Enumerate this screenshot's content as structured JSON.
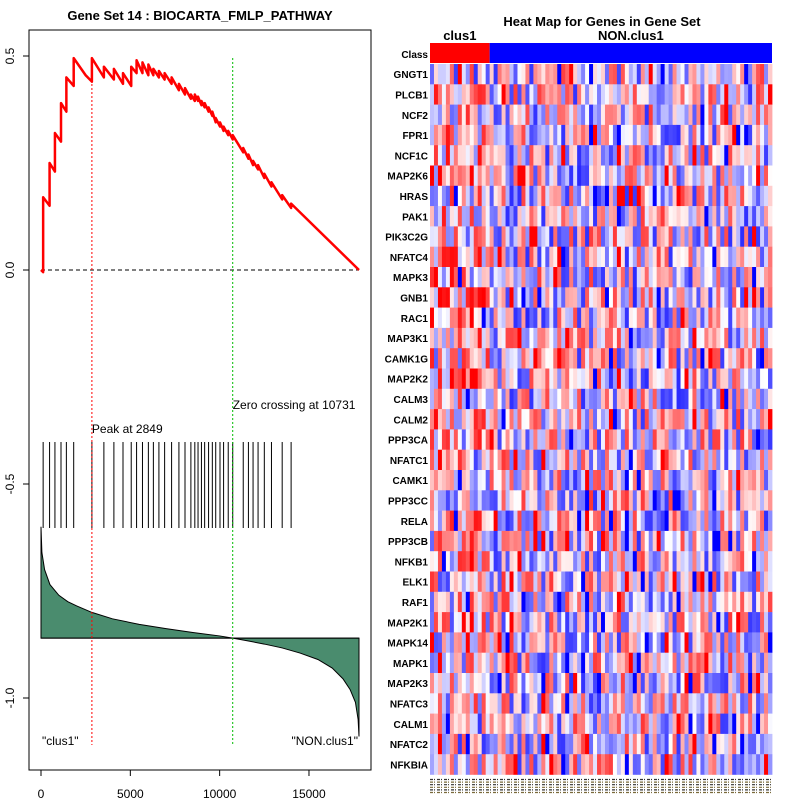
{
  "chart_data": [
    {
      "type": "line",
      "panel": "enrichment-plot",
      "title": "Gene Set  14 : BIOCARTA_FMLP_PATHWAY",
      "xlabel": "",
      "ylabel": "",
      "xlim": [
        0,
        17800
      ],
      "ylim": [
        -1.1,
        0.55
      ],
      "x_ticks": [
        0,
        5000,
        10000,
        15000
      ],
      "x_tick_labels": [
        "0",
        "5000",
        "10000",
        "15000"
      ],
      "y_ticks": [
        0.5,
        0.0,
        -0.5,
        -1.0
      ],
      "y_tick_labels": [
        "0.5",
        "0.0",
        "-0.5",
        "-1.0"
      ],
      "n_genes": 17800,
      "hit_positions": [
        120,
        480,
        780,
        1120,
        1420,
        1830,
        2849,
        3520,
        4080,
        4590,
        5050,
        5350,
        5680,
        6010,
        6290,
        6600,
        6920,
        7310,
        7720,
        8060,
        8390,
        8610,
        8790,
        8980,
        9160,
        9380,
        9590,
        9780,
        10020,
        10220,
        10480,
        10731,
        11320,
        11610,
        11870,
        12150,
        12500,
        12900,
        13500,
        14000
      ],
      "es_curve": {
        "name": "Running enrichment score",
        "x": [
          0,
          120,
          120,
          480,
          480,
          780,
          780,
          1120,
          1120,
          1420,
          1420,
          1830,
          1830,
          2500,
          2849,
          2849,
          3520,
          3520,
          4080,
          4080,
          4590,
          4590,
          5050,
          5050,
          5350,
          5350,
          5680,
          5680,
          6010,
          6010,
          6290,
          6290,
          6600,
          6600,
          6920,
          6920,
          7310,
          7310,
          7720,
          7720,
          8060,
          8060,
          8390,
          8390,
          8610,
          8610,
          8790,
          8790,
          8980,
          8980,
          9160,
          9160,
          9380,
          9380,
          9590,
          9590,
          9780,
          9780,
          10020,
          10020,
          10220,
          10220,
          10480,
          10480,
          10731,
          10731,
          11320,
          11320,
          11610,
          11610,
          11870,
          11870,
          12150,
          12150,
          12500,
          12500,
          12900,
          12900,
          13500,
          13500,
          14000,
          14000,
          17800
        ],
        "values": [
          0.0,
          -0.005,
          0.17,
          0.15,
          0.25,
          0.23,
          0.32,
          0.3,
          0.39,
          0.37,
          0.45,
          0.43,
          0.495,
          0.455,
          0.44,
          0.495,
          0.45,
          0.475,
          0.445,
          0.47,
          0.435,
          0.46,
          0.43,
          0.475,
          0.46,
          0.49,
          0.46,
          0.485,
          0.455,
          0.48,
          0.455,
          0.47,
          0.45,
          0.465,
          0.445,
          0.46,
          0.435,
          0.45,
          0.42,
          0.435,
          0.41,
          0.425,
          0.4,
          0.41,
          0.395,
          0.41,
          0.395,
          0.405,
          0.385,
          0.395,
          0.38,
          0.39,
          0.37,
          0.38,
          0.36,
          0.37,
          0.345,
          0.355,
          0.335,
          0.345,
          0.325,
          0.335,
          0.315,
          0.325,
          0.305,
          0.315,
          0.275,
          0.285,
          0.26,
          0.27,
          0.245,
          0.255,
          0.235,
          0.245,
          0.215,
          0.225,
          0.195,
          0.205,
          0.165,
          0.175,
          0.145,
          0.155,
          0.0
        ]
      },
      "ranked_metric": {
        "name": "Ranked list metric",
        "baseline": -0.86,
        "x": [
          0,
          50,
          200,
          500,
          1000,
          1500,
          2000,
          2849,
          4000,
          5500,
          7000,
          8500,
          10000,
          10731,
          11500,
          12500,
          13500,
          14500,
          15500,
          16300,
          16900,
          17300,
          17600,
          17750,
          17800
        ],
        "values": [
          -0.6,
          -0.66,
          -0.7,
          -0.735,
          -0.76,
          -0.775,
          -0.785,
          -0.8,
          -0.815,
          -0.828,
          -0.838,
          -0.847,
          -0.855,
          -0.86,
          -0.866,
          -0.874,
          -0.883,
          -0.895,
          -0.91,
          -0.93,
          -0.955,
          -0.98,
          -1.01,
          -1.05,
          -1.09
        ]
      },
      "annotations": {
        "peak_position": 2849,
        "peak_label": "Peak at 2849",
        "zero_crossing": 10731,
        "zero_crossing_label": "Zero crossing at 10731",
        "left_class_label": "\"clus1\"",
        "right_class_label": "\"NON.clus1\""
      },
      "colors": {
        "es_line": "#ff0000",
        "peak_line": "#ff0000",
        "zero_line": "#00bb00",
        "metric_fill": "#4a8c6e",
        "hits": "#000000"
      }
    },
    {
      "type": "heatmap",
      "panel": "heat-map",
      "title": "Heat Map for Genes in Gene Set",
      "class_row_label": "Class",
      "classes": [
        "clus1",
        "NON.clus1"
      ],
      "class_sample_counts": [
        15,
        71
      ],
      "class_colors": [
        "#ff0000",
        "#0000ff"
      ],
      "genes": [
        "GNGT1",
        "PLCB1",
        "NCF2",
        "FPR1",
        "NCF1C",
        "MAP2K6",
        "HRAS",
        "PAK1",
        "PIK3C2G",
        "NFATC4",
        "MAPK3",
        "GNB1",
        "RAC1",
        "MAP3K1",
        "CAMK1G",
        "MAP2K2",
        "CALM3",
        "CALM2",
        "PPP3CA",
        "NFATC1",
        "CAMK1",
        "PPP3CC",
        "RELA",
        "PPP3CB",
        "NFKB1",
        "ELK1",
        "RAF1",
        "MAP2K1",
        "MAPK14",
        "MAPK1",
        "MAP2K3",
        "NFATC3",
        "CALM1",
        "NFATC2",
        "NFKBIA"
      ],
      "gene_red_bias_clus1": [
        0.0,
        0.25,
        0.2,
        0.25,
        0.3,
        0.35,
        0.15,
        0.15,
        0.15,
        0.2,
        0.2,
        0.4,
        0.45,
        0.25,
        0.1,
        0.25,
        0.2,
        0.2,
        0.1,
        0.05,
        0.1,
        0.05,
        0.2,
        0.1,
        0.1,
        0.05,
        0.1,
        0.1,
        0.0,
        0.05,
        0.05,
        0.0,
        0.0,
        0.0,
        0.05
      ],
      "color_scale": {
        "low": "#0000ff",
        "mid": "#ffffff",
        "high": "#ff0000"
      }
    }
  ]
}
